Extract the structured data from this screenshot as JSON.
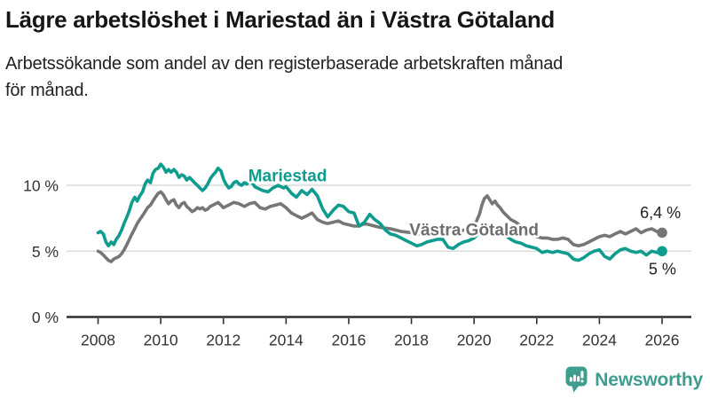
{
  "header": {
    "title": "Lägre arbetslöshet i Mariestad än i Västra Götaland",
    "subtitle_lines": [
      "Arbetssökande som andel av den registerbaserade arbetskraften månad",
      "för månad."
    ]
  },
  "footer": {
    "brand": "Newsworthy",
    "brand_color": "#3d9e90"
  },
  "chart_data": {
    "type": "line",
    "title": "Lägre arbetslöshet i Mariestad än i Västra Götaland",
    "subtitle": "Arbetssökande som andel av den registerbaserade arbetskraften månad för månad.",
    "xlabel": "",
    "ylabel": "",
    "xlim": [
      2008,
      2026
    ],
    "ylim": [
      0,
      12.6
    ],
    "grid": "horizontal",
    "legend_position": "inline-labels",
    "x_ticks": [
      "2008",
      "2010",
      "2012",
      "2014",
      "2016",
      "2018",
      "2020",
      "2022",
      "2024",
      "2026"
    ],
    "x_tick_values": [
      2008,
      2010,
      2012,
      2014,
      2016,
      2018,
      2020,
      2022,
      2024,
      2026
    ],
    "y_ticks": [
      {
        "value": 10,
        "label": "10 %"
      },
      {
        "value": 5,
        "label": "5 %"
      },
      {
        "value": 0,
        "label": "0 %"
      }
    ],
    "series": [
      {
        "name": "Västra Götaland",
        "color": "#767676",
        "label_color": "#6e6e6e",
        "end_value_label": "6,4 %",
        "points": [
          [
            2008.0,
            5.0
          ],
          [
            2008.08,
            4.9
          ],
          [
            2008.17,
            4.7
          ],
          [
            2008.25,
            4.5
          ],
          [
            2008.33,
            4.3
          ],
          [
            2008.42,
            4.2
          ],
          [
            2008.5,
            4.4
          ],
          [
            2008.58,
            4.5
          ],
          [
            2008.67,
            4.6
          ],
          [
            2008.75,
            4.8
          ],
          [
            2008.83,
            5.1
          ],
          [
            2008.92,
            5.5
          ],
          [
            2009.0,
            5.9
          ],
          [
            2009.08,
            6.3
          ],
          [
            2009.17,
            6.7
          ],
          [
            2009.25,
            7.1
          ],
          [
            2009.33,
            7.4
          ],
          [
            2009.42,
            7.7
          ],
          [
            2009.5,
            8.0
          ],
          [
            2009.58,
            8.3
          ],
          [
            2009.67,
            8.5
          ],
          [
            2009.75,
            8.8
          ],
          [
            2009.83,
            9.1
          ],
          [
            2009.92,
            9.4
          ],
          [
            2010.0,
            9.5
          ],
          [
            2010.08,
            9.3
          ],
          [
            2010.17,
            8.9
          ],
          [
            2010.25,
            8.6
          ],
          [
            2010.33,
            8.8
          ],
          [
            2010.42,
            8.9
          ],
          [
            2010.5,
            8.5
          ],
          [
            2010.58,
            8.3
          ],
          [
            2010.67,
            8.6
          ],
          [
            2010.75,
            8.7
          ],
          [
            2010.83,
            8.4
          ],
          [
            2010.92,
            8.2
          ],
          [
            2011.0,
            8.0
          ],
          [
            2011.08,
            8.1
          ],
          [
            2011.17,
            8.3
          ],
          [
            2011.25,
            8.2
          ],
          [
            2011.33,
            8.3
          ],
          [
            2011.42,
            8.1
          ],
          [
            2011.5,
            8.2
          ],
          [
            2011.58,
            8.4
          ],
          [
            2011.67,
            8.5
          ],
          [
            2011.75,
            8.6
          ],
          [
            2011.83,
            8.7
          ],
          [
            2011.92,
            8.5
          ],
          [
            2012.0,
            8.3
          ],
          [
            2012.17,
            8.5
          ],
          [
            2012.33,
            8.7
          ],
          [
            2012.5,
            8.6
          ],
          [
            2012.67,
            8.4
          ],
          [
            2012.83,
            8.6
          ],
          [
            2013.0,
            8.7
          ],
          [
            2013.17,
            8.3
          ],
          [
            2013.33,
            8.2
          ],
          [
            2013.5,
            8.4
          ],
          [
            2013.67,
            8.5
          ],
          [
            2013.83,
            8.6
          ],
          [
            2014.0,
            8.3
          ],
          [
            2014.17,
            7.9
          ],
          [
            2014.33,
            7.7
          ],
          [
            2014.5,
            7.5
          ],
          [
            2014.67,
            7.7
          ],
          [
            2014.83,
            7.9
          ],
          [
            2015.0,
            7.4
          ],
          [
            2015.17,
            7.2
          ],
          [
            2015.33,
            7.1
          ],
          [
            2015.5,
            7.2
          ],
          [
            2015.67,
            7.3
          ],
          [
            2015.83,
            7.1
          ],
          [
            2016.0,
            7.0
          ],
          [
            2016.17,
            6.9
          ],
          [
            2016.33,
            6.9
          ],
          [
            2016.5,
            7.1
          ],
          [
            2016.67,
            7.0
          ],
          [
            2016.83,
            6.9
          ],
          [
            2017.0,
            6.8
          ],
          [
            2017.17,
            6.75
          ],
          [
            2017.33,
            6.7
          ],
          [
            2017.5,
            6.6
          ],
          [
            2017.67,
            6.5
          ],
          [
            2017.83,
            6.45
          ],
          [
            2018.0,
            6.4
          ],
          [
            2018.17,
            6.3
          ],
          [
            2018.33,
            6.3
          ],
          [
            2018.5,
            6.35
          ],
          [
            2018.67,
            6.4
          ],
          [
            2018.83,
            6.35
          ],
          [
            2019.0,
            6.3
          ],
          [
            2019.17,
            6.3
          ],
          [
            2019.33,
            6.4
          ],
          [
            2019.5,
            6.5
          ],
          [
            2019.67,
            6.6
          ],
          [
            2019.83,
            6.7
          ],
          [
            2020.0,
            6.9
          ],
          [
            2020.08,
            7.3
          ],
          [
            2020.17,
            7.8
          ],
          [
            2020.25,
            8.5
          ],
          [
            2020.33,
            9.0
          ],
          [
            2020.42,
            9.2
          ],
          [
            2020.5,
            8.9
          ],
          [
            2020.58,
            8.6
          ],
          [
            2020.67,
            8.8
          ],
          [
            2020.75,
            8.5
          ],
          [
            2020.83,
            8.3
          ],
          [
            2020.92,
            8.0
          ],
          [
            2021.0,
            7.8
          ],
          [
            2021.17,
            7.4
          ],
          [
            2021.33,
            7.2
          ],
          [
            2021.5,
            6.9
          ],
          [
            2021.67,
            6.6
          ],
          [
            2021.83,
            6.3
          ],
          [
            2022.0,
            6.1
          ],
          [
            2022.17,
            6.0
          ],
          [
            2022.33,
            6.0
          ],
          [
            2022.5,
            5.9
          ],
          [
            2022.67,
            5.9
          ],
          [
            2022.83,
            6.0
          ],
          [
            2023.0,
            5.9
          ],
          [
            2023.17,
            5.5
          ],
          [
            2023.33,
            5.4
          ],
          [
            2023.5,
            5.5
          ],
          [
            2023.67,
            5.7
          ],
          [
            2023.83,
            5.9
          ],
          [
            2024.0,
            6.1
          ],
          [
            2024.17,
            6.2
          ],
          [
            2024.33,
            6.1
          ],
          [
            2024.5,
            6.3
          ],
          [
            2024.67,
            6.5
          ],
          [
            2024.83,
            6.3
          ],
          [
            2025.0,
            6.5
          ],
          [
            2025.17,
            6.7
          ],
          [
            2025.33,
            6.4
          ],
          [
            2025.5,
            6.6
          ],
          [
            2025.67,
            6.7
          ],
          [
            2025.83,
            6.5
          ],
          [
            2026.0,
            6.4
          ]
        ]
      },
      {
        "name": "Mariestad",
        "color": "#0e9c8e",
        "label_color": "#0e9c8e",
        "end_value_label": "5 %",
        "points": [
          [
            2008.0,
            6.4
          ],
          [
            2008.08,
            6.5
          ],
          [
            2008.17,
            6.3
          ],
          [
            2008.25,
            5.7
          ],
          [
            2008.33,
            5.4
          ],
          [
            2008.42,
            5.7
          ],
          [
            2008.5,
            5.5
          ],
          [
            2008.58,
            5.9
          ],
          [
            2008.67,
            6.2
          ],
          [
            2008.75,
            6.6
          ],
          [
            2008.83,
            7.1
          ],
          [
            2008.92,
            7.6
          ],
          [
            2009.0,
            8.1
          ],
          [
            2009.08,
            8.7
          ],
          [
            2009.17,
            9.1
          ],
          [
            2009.25,
            8.8
          ],
          [
            2009.33,
            9.2
          ],
          [
            2009.42,
            9.5
          ],
          [
            2009.5,
            10.1
          ],
          [
            2009.58,
            10.4
          ],
          [
            2009.67,
            10.2
          ],
          [
            2009.75,
            10.9
          ],
          [
            2009.83,
            11.2
          ],
          [
            2009.92,
            11.3
          ],
          [
            2010.0,
            11.6
          ],
          [
            2010.08,
            11.4
          ],
          [
            2010.17,
            11.0
          ],
          [
            2010.25,
            11.2
          ],
          [
            2010.33,
            11.0
          ],
          [
            2010.42,
            11.2
          ],
          [
            2010.5,
            11.0
          ],
          [
            2010.58,
            10.6
          ],
          [
            2010.67,
            10.8
          ],
          [
            2010.75,
            10.7
          ],
          [
            2010.83,
            10.4
          ],
          [
            2010.92,
            10.6
          ],
          [
            2011.0,
            10.4
          ],
          [
            2011.08,
            10.2
          ],
          [
            2011.17,
            10.0
          ],
          [
            2011.25,
            9.8
          ],
          [
            2011.33,
            9.6
          ],
          [
            2011.42,
            9.8
          ],
          [
            2011.5,
            10.1
          ],
          [
            2011.58,
            10.5
          ],
          [
            2011.67,
            10.8
          ],
          [
            2011.75,
            11.0
          ],
          [
            2011.83,
            11.3
          ],
          [
            2011.92,
            11.1
          ],
          [
            2012.0,
            10.5
          ],
          [
            2012.08,
            10.1
          ],
          [
            2012.17,
            9.8
          ],
          [
            2012.25,
            9.9
          ],
          [
            2012.33,
            10.2
          ],
          [
            2012.42,
            10.3
          ],
          [
            2012.5,
            10.1
          ],
          [
            2012.58,
            10.0
          ],
          [
            2012.67,
            10.2
          ],
          [
            2012.75,
            10.1
          ],
          [
            2012.83,
            10.3
          ],
          [
            2012.92,
            10.2
          ],
          [
            2013.0,
            9.9
          ],
          [
            2013.08,
            9.8
          ],
          [
            2013.25,
            9.6
          ],
          [
            2013.42,
            9.5
          ],
          [
            2013.58,
            9.8
          ],
          [
            2013.75,
            10.0
          ],
          [
            2013.92,
            9.8
          ],
          [
            2014.0,
            9.9
          ],
          [
            2014.17,
            9.4
          ],
          [
            2014.33,
            9.1
          ],
          [
            2014.5,
            9.6
          ],
          [
            2014.67,
            9.3
          ],
          [
            2014.83,
            9.7
          ],
          [
            2015.0,
            9.2
          ],
          [
            2015.17,
            8.2
          ],
          [
            2015.33,
            7.6
          ],
          [
            2015.5,
            8.1
          ],
          [
            2015.67,
            8.5
          ],
          [
            2015.83,
            8.4
          ],
          [
            2016.0,
            8.0
          ],
          [
            2016.17,
            7.9
          ],
          [
            2016.33,
            6.9
          ],
          [
            2016.5,
            7.2
          ],
          [
            2016.67,
            7.8
          ],
          [
            2016.83,
            7.4
          ],
          [
            2017.0,
            7.1
          ],
          [
            2017.17,
            6.6
          ],
          [
            2017.33,
            6.3
          ],
          [
            2017.5,
            6.2
          ],
          [
            2017.67,
            6.0
          ],
          [
            2017.83,
            5.8
          ],
          [
            2018.0,
            5.6
          ],
          [
            2018.17,
            5.4
          ],
          [
            2018.33,
            5.5
          ],
          [
            2018.5,
            5.7
          ],
          [
            2018.67,
            5.8
          ],
          [
            2018.83,
            5.9
          ],
          [
            2019.0,
            5.9
          ],
          [
            2019.17,
            5.3
          ],
          [
            2019.33,
            5.2
          ],
          [
            2019.5,
            5.5
          ],
          [
            2019.67,
            5.7
          ],
          [
            2019.83,
            5.8
          ],
          [
            2020.0,
            6.0
          ],
          [
            2020.17,
            6.4
          ],
          [
            2020.33,
            6.7
          ],
          [
            2020.5,
            6.9
          ],
          [
            2020.67,
            6.6
          ],
          [
            2020.83,
            6.4
          ],
          [
            2021.0,
            6.2
          ],
          [
            2021.17,
            5.9
          ],
          [
            2021.33,
            5.7
          ],
          [
            2021.5,
            5.6
          ],
          [
            2021.67,
            5.4
          ],
          [
            2021.83,
            5.3
          ],
          [
            2022.0,
            5.2
          ],
          [
            2022.17,
            4.9
          ],
          [
            2022.33,
            5.0
          ],
          [
            2022.5,
            4.9
          ],
          [
            2022.67,
            5.0
          ],
          [
            2022.83,
            4.9
          ],
          [
            2023.0,
            4.8
          ],
          [
            2023.17,
            4.4
          ],
          [
            2023.33,
            4.3
          ],
          [
            2023.5,
            4.5
          ],
          [
            2023.67,
            4.8
          ],
          [
            2023.83,
            5.0
          ],
          [
            2024.0,
            5.1
          ],
          [
            2024.17,
            4.6
          ],
          [
            2024.33,
            4.4
          ],
          [
            2024.5,
            4.8
          ],
          [
            2024.67,
            5.1
          ],
          [
            2024.83,
            5.2
          ],
          [
            2025.0,
            5.0
          ],
          [
            2025.17,
            4.9
          ],
          [
            2025.33,
            5.0
          ],
          [
            2025.5,
            4.7
          ],
          [
            2025.67,
            5.0
          ],
          [
            2025.83,
            4.9
          ],
          [
            2026.0,
            5.0
          ]
        ]
      }
    ],
    "annotations": {
      "series_labels": [
        {
          "text": "Mariestad",
          "x": 2014.05,
          "y": 10.75,
          "anchor": "middle",
          "color": "#0e9c8e"
        },
        {
          "text": "Västra Götaland",
          "x": 2020.0,
          "y": 6.62,
          "anchor": "middle",
          "color": "#6e6e6e"
        }
      ],
      "end_labels": [
        {
          "text": "6,4 %",
          "x": 2026.6,
          "y": 7.9,
          "anchor": "end"
        },
        {
          "text": "5 %",
          "x": 2026.45,
          "y": 3.65,
          "anchor": "end"
        }
      ]
    }
  }
}
